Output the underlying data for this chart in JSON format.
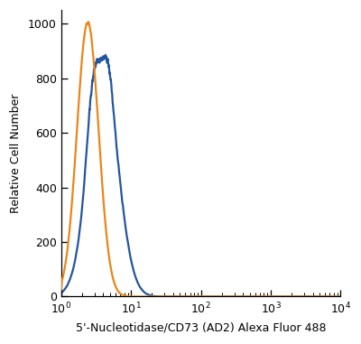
{
  "title": "",
  "xlabel": "5'-Nucleotidase/CD73 (AD2) Alexa Fluor 488",
  "ylabel": "Relative Cell Number",
  "xlim_log": [
    0.0,
    4.0
  ],
  "ylim": [
    0,
    1050
  ],
  "yticks": [
    0,
    200,
    400,
    600,
    800,
    1000
  ],
  "orange_color": "#E8861A",
  "blue_color": "#2255A0",
  "background_color": "#FFFFFF",
  "orange_mean_log": 0.38,
  "orange_std_log": 0.155,
  "orange_peak": 1005,
  "orange_left_y": 320,
  "blue_mean_log": 0.6,
  "blue_std_log": 0.21,
  "blue_peak": 820,
  "blue_left_y": 260,
  "blue_shoulder1_mean": 0.44,
  "blue_shoulder1_amp": 160,
  "blue_shoulder1_std": 0.08,
  "blue_shelf_mean": 0.68,
  "blue_shelf_amp": 80,
  "blue_shelf_std": 0.06
}
